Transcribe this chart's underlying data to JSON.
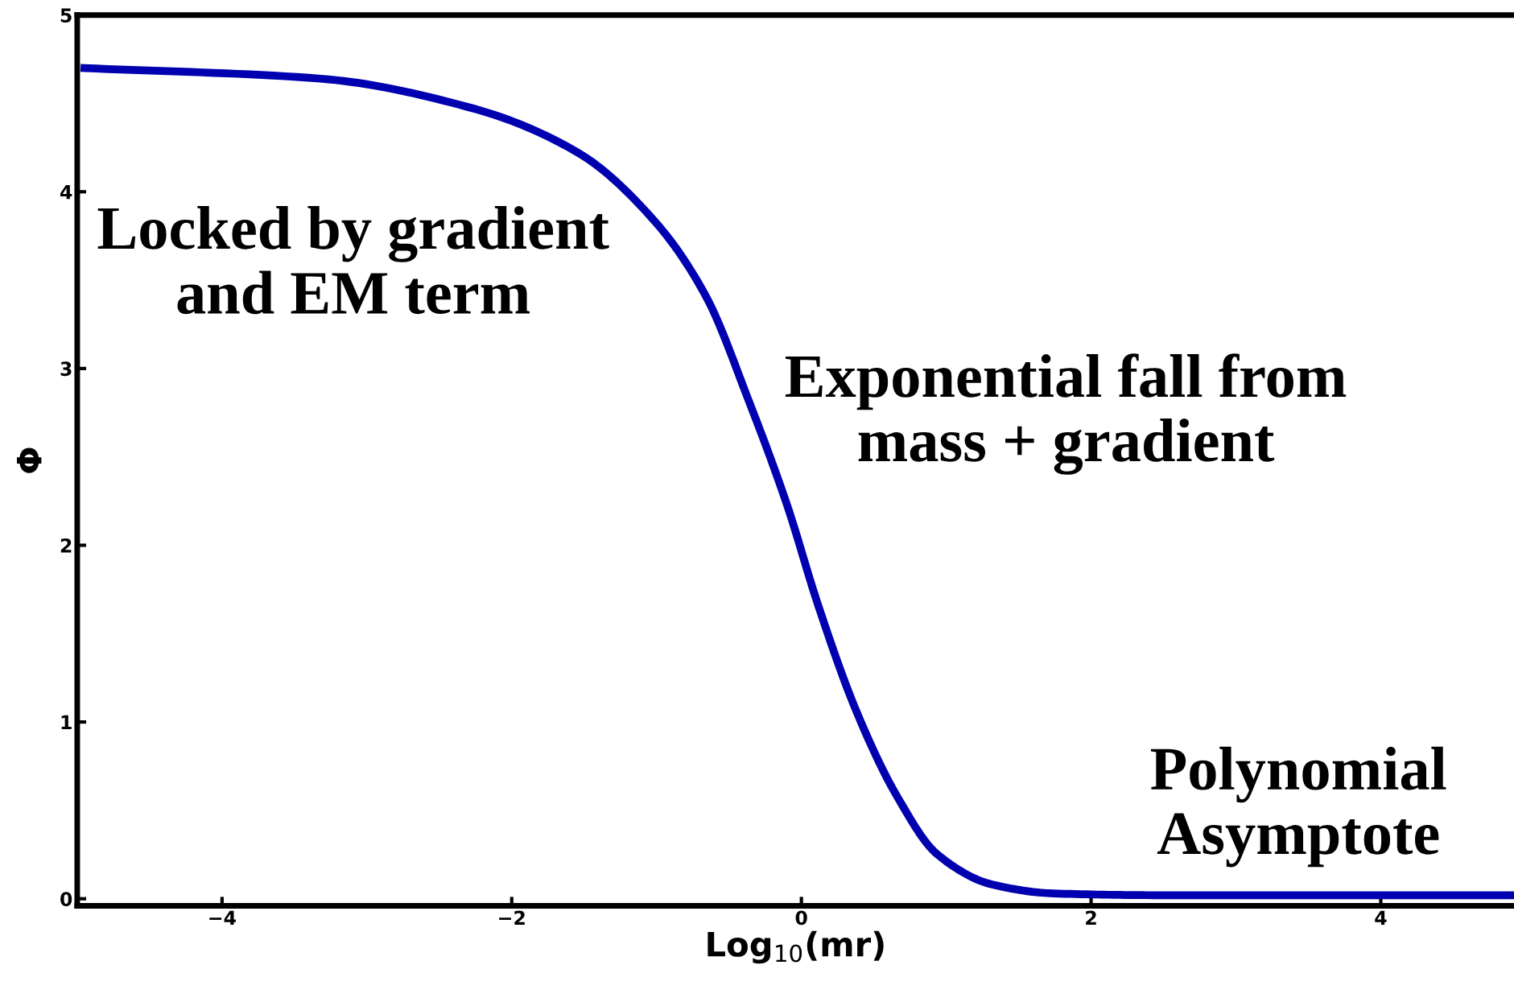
{
  "chart_data": {
    "type": "line",
    "xlabel": "Log$_{10}$(mr)",
    "ylabel": "Φ",
    "x": [
      -4.95,
      -3.32,
      -2.26,
      -1.54,
      -1.02,
      -0.66,
      -0.36,
      -0.1,
      0.12,
      0.38,
      0.66,
      0.94,
      1.32,
      1.74,
      2.5,
      3.5,
      4.92
    ],
    "series": [
      {
        "color": "#0000b0",
        "values": [
          4.7,
          4.64,
          4.47,
          4.22,
          3.84,
          3.41,
          2.81,
          2.23,
          1.65,
          1.06,
          0.58,
          0.25,
          0.08,
          0.03,
          0.02,
          0.02,
          0.02
        ]
      }
    ],
    "xlim": [
      -5,
      4.92
    ],
    "ylim": [
      -0.04,
      5
    ],
    "xticks": [
      {
        "value": -4,
        "label": "−4"
      },
      {
        "value": -2,
        "label": "−2"
      },
      0,
      2,
      4
    ],
    "yticks": [
      0,
      1,
      2,
      3,
      4,
      5
    ],
    "grid": false,
    "marker": "none",
    "line_style": "solid",
    "annotations": [
      "Locked by gradient\nand EM term",
      "Exponential fall from\nmass + gradient",
      "Polynomial\nAsymptote"
    ]
  }
}
